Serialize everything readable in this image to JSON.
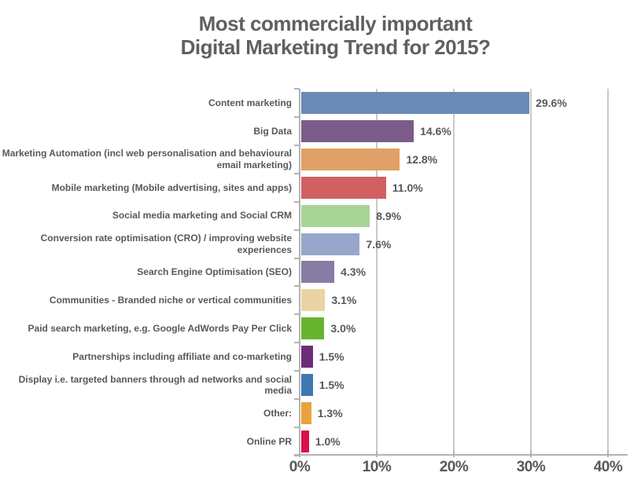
{
  "title": {
    "line1": "Most commercially important",
    "line2": "Digital Marketing Trend for 2015?"
  },
  "chart_data": {
    "type": "bar",
    "orientation": "horizontal",
    "title": "Most commercially important Digital Marketing Trend for 2015?",
    "categories": [
      "Content marketing",
      "Big Data",
      "Marketing Automation (incl web personalisation and behavioural email marketing)",
      "Mobile marketing (Mobile advertising, sites and apps)",
      "Social media marketing and Social CRM",
      "Conversion rate optimisation (CRO) / improving website experiences",
      "Search Engine Optimisation (SEO)",
      "Communities - Branded niche or vertical communities",
      "Paid search marketing, e.g. Google AdWords Pay Per Click",
      "Partnerships including affiliate and co-marketing",
      "Display i.e. targeted banners through ad networks and social media",
      "Other:",
      "Online PR"
    ],
    "values": [
      29.6,
      14.6,
      12.8,
      11.0,
      8.9,
      7.6,
      4.3,
      3.1,
      3.0,
      1.5,
      1.5,
      1.3,
      1.0
    ],
    "value_labels": [
      "29.6%",
      "14.6%",
      "12.8%",
      "11.0%",
      "8.9%",
      "7.6%",
      "4.3%",
      "3.1%",
      "3.0%",
      "1.5%",
      "1.5%",
      "1.3%",
      "1.0%"
    ],
    "bar_colors": [
      "#6B8AB6",
      "#7B5C8B",
      "#E0A066",
      "#D06062",
      "#A8D396",
      "#97A7C9",
      "#867CA4",
      "#EBD3A3",
      "#67B42F",
      "#6E2C78",
      "#3F77B5",
      "#EAA33C",
      "#DB0F4A"
    ],
    "xlabel": "",
    "ylabel": "",
    "xlim": [
      0,
      40
    ],
    "x_ticks": [
      0,
      10,
      20,
      30,
      40
    ],
    "x_tick_labels": [
      "0%",
      "10%",
      "20%",
      "30%",
      "40%"
    ],
    "grid": "vertical-gridlines",
    "legend": "none",
    "text_color": "#57585a",
    "title_color": "#606062",
    "grid_color": "#c9c9c9",
    "axis_color": "#b3b3b3"
  }
}
